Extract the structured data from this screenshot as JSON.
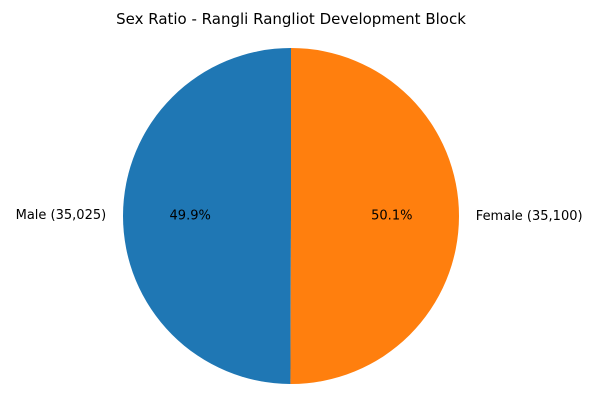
{
  "chart_data": {
    "type": "pie",
    "title": "Sex Ratio - Rangli Rangliot Development Block",
    "slices": [
      {
        "label": "Male (35,025)",
        "value": 35025,
        "percent_label": "49.9%",
        "color": "#1f77b4"
      },
      {
        "label": "Female (35,100)",
        "value": 35100,
        "percent_label": "50.1%",
        "color": "#ff7f0e"
      }
    ],
    "start_angle": "top (90°)",
    "direction": "counterclockwise"
  }
}
